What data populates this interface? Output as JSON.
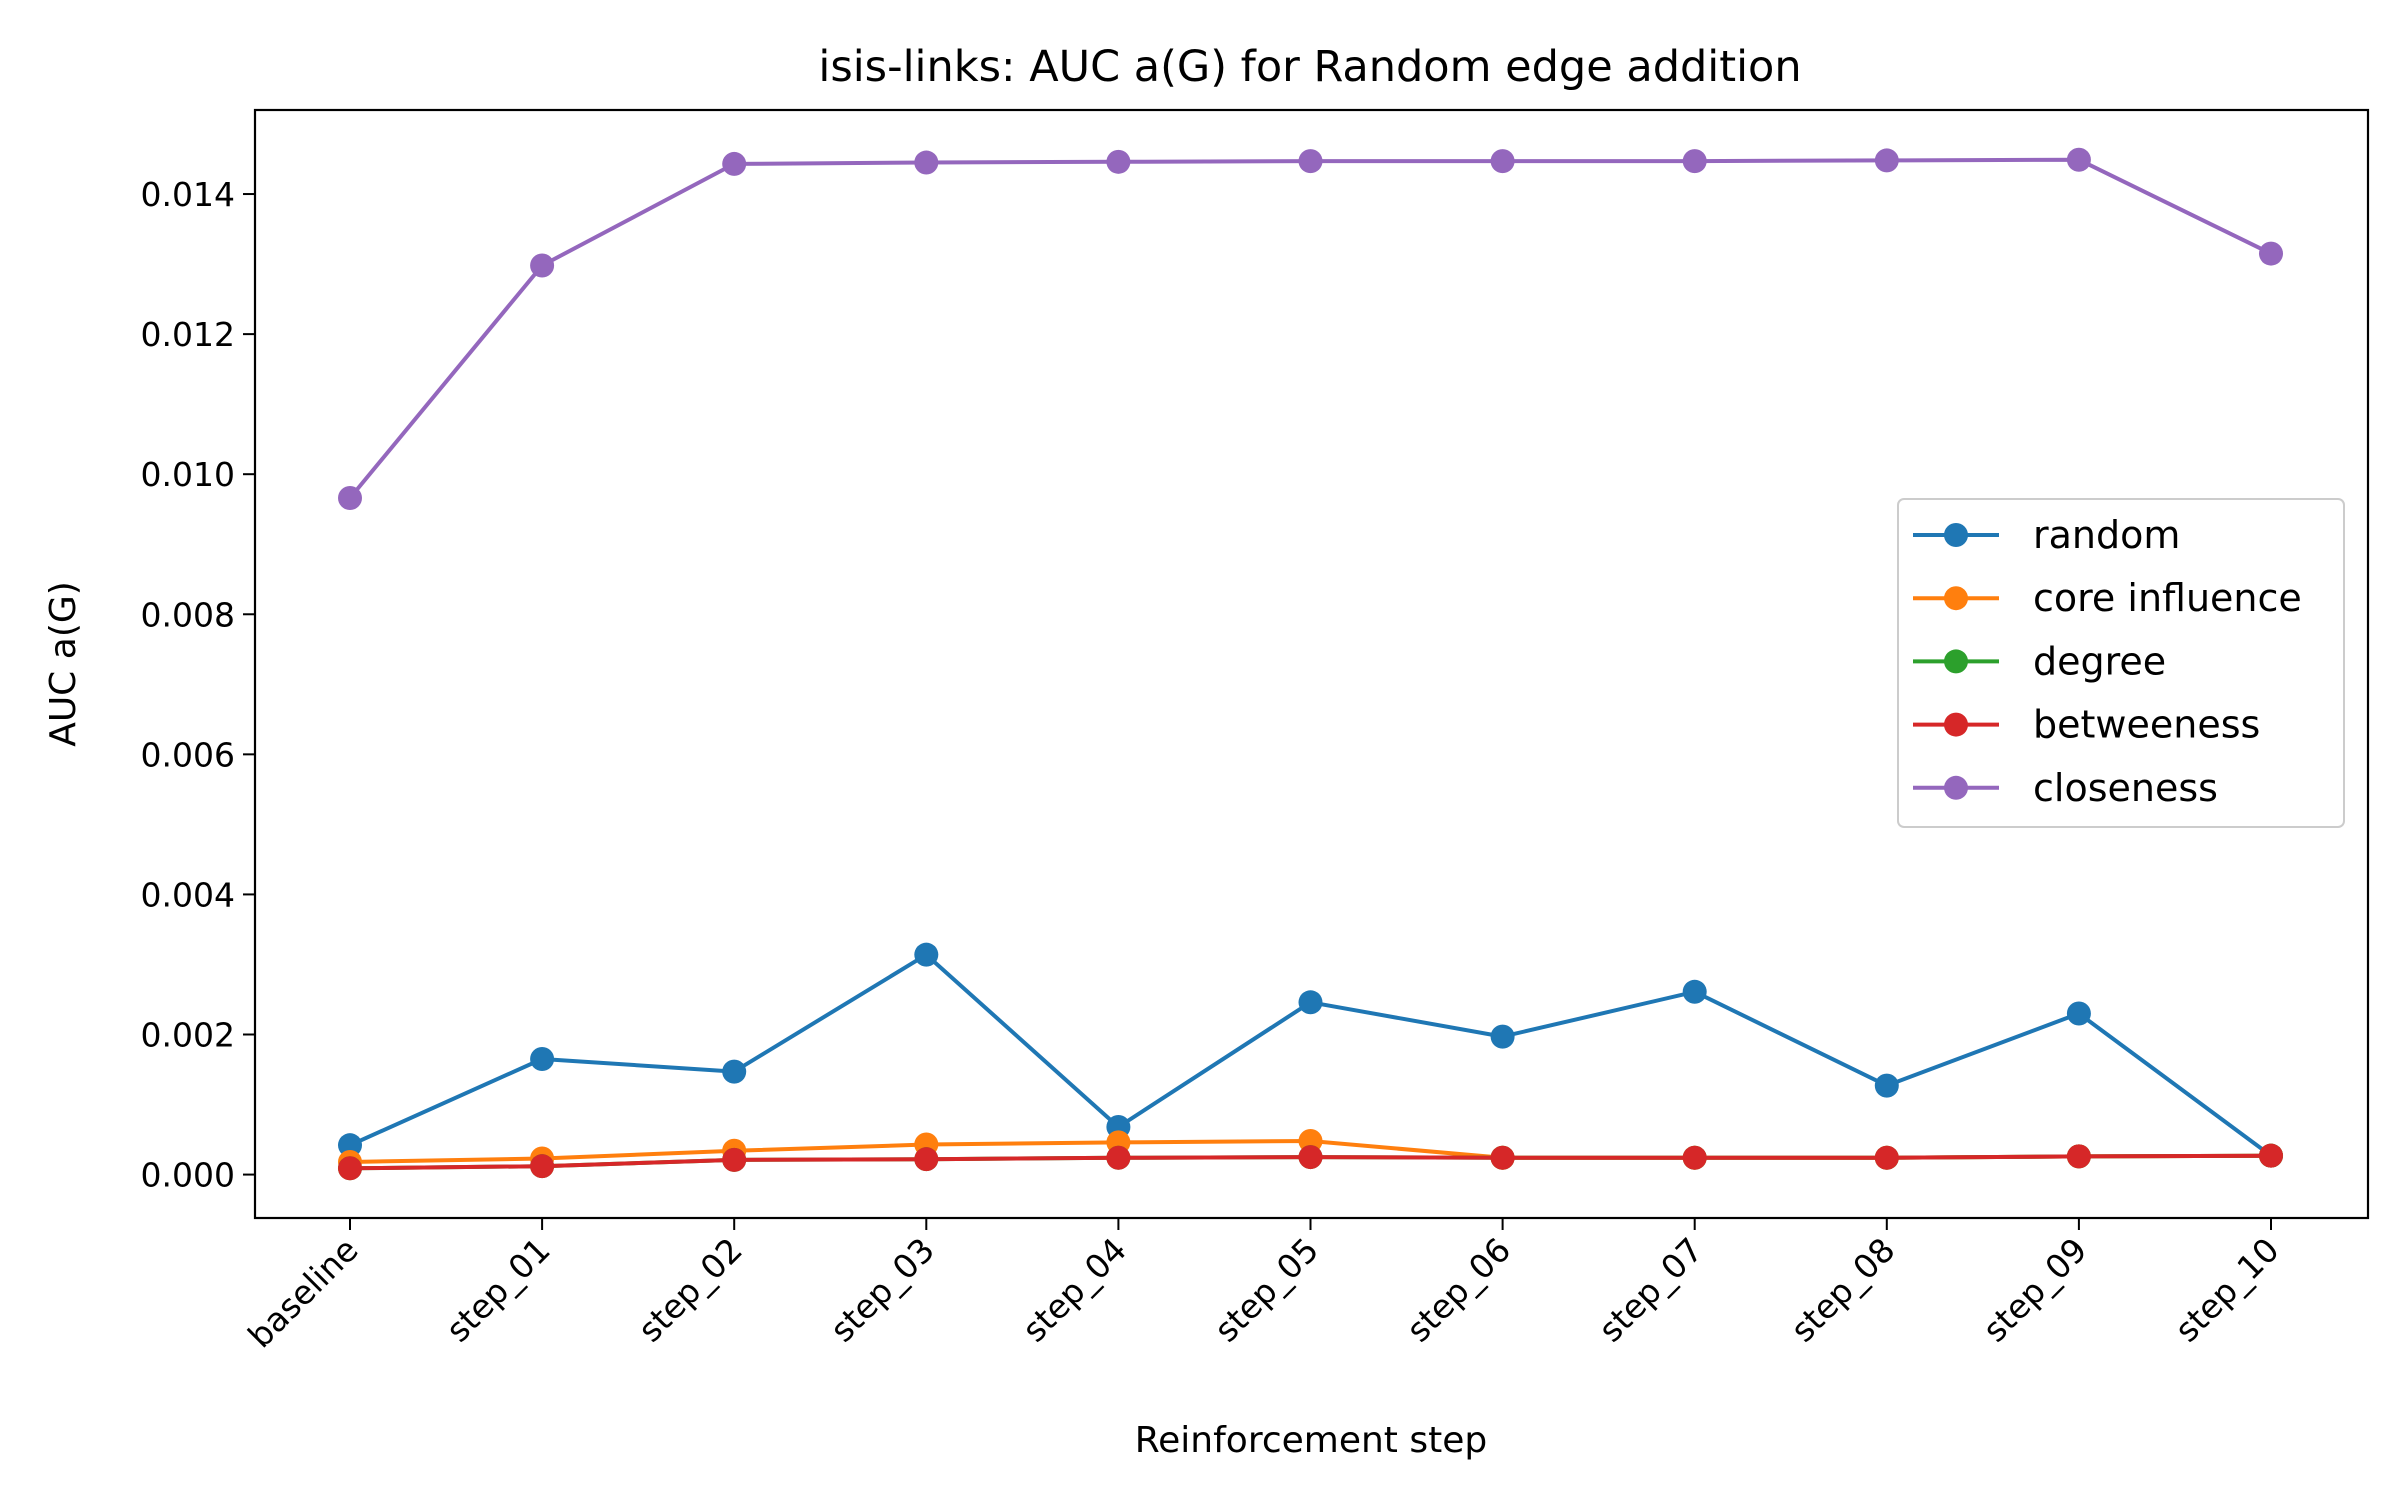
{
  "chart_data": {
    "type": "line",
    "title": "isis-links: AUC a(G) for Random edge addition",
    "xlabel": "Reinforcement step",
    "ylabel": "AUC a(G)",
    "categories": [
      "baseline",
      "step_01",
      "step_02",
      "step_03",
      "step_04",
      "step_05",
      "step_06",
      "step_07",
      "step_08",
      "step_09",
      "step_10"
    ],
    "ylim": [
      -0.00062,
      0.0152
    ],
    "yticks": [
      "0.000",
      "0.002",
      "0.004",
      "0.006",
      "0.008",
      "0.010",
      "0.012",
      "0.014"
    ],
    "grid": false,
    "legend_position": "center-right",
    "series": [
      {
        "name": "random",
        "color": "#1f77b4",
        "values": [
          0.00042,
          0.00165,
          0.00147,
          0.00314,
          0.00068,
          0.00246,
          0.00197,
          0.00261,
          0.00127,
          0.0023,
          0.00027
        ]
      },
      {
        "name": "core influence",
        "color": "#ff7f0e",
        "values": [
          0.00018,
          0.00023,
          0.00034,
          0.00043,
          0.00046,
          0.00048,
          0.00024,
          0.00024,
          0.00024,
          0.00026,
          0.00027
        ]
      },
      {
        "name": "degree",
        "color": "#2ca02c",
        "values": [
          9e-05,
          0.00012,
          0.00021,
          0.00022,
          0.00024,
          0.00025,
          0.00024,
          0.00024,
          0.00024,
          0.00026,
          0.00027
        ]
      },
      {
        "name": "betweeness",
        "color": "#d62728",
        "values": [
          9e-05,
          0.00012,
          0.00021,
          0.00022,
          0.00024,
          0.00025,
          0.00024,
          0.00024,
          0.00024,
          0.00026,
          0.00027
        ]
      },
      {
        "name": "closeness",
        "color": "#9467bd",
        "values": [
          0.00966,
          0.01298,
          0.01443,
          0.01445,
          0.01446,
          0.01447,
          0.01447,
          0.01447,
          0.01448,
          0.01449,
          0.01315
        ]
      }
    ]
  }
}
